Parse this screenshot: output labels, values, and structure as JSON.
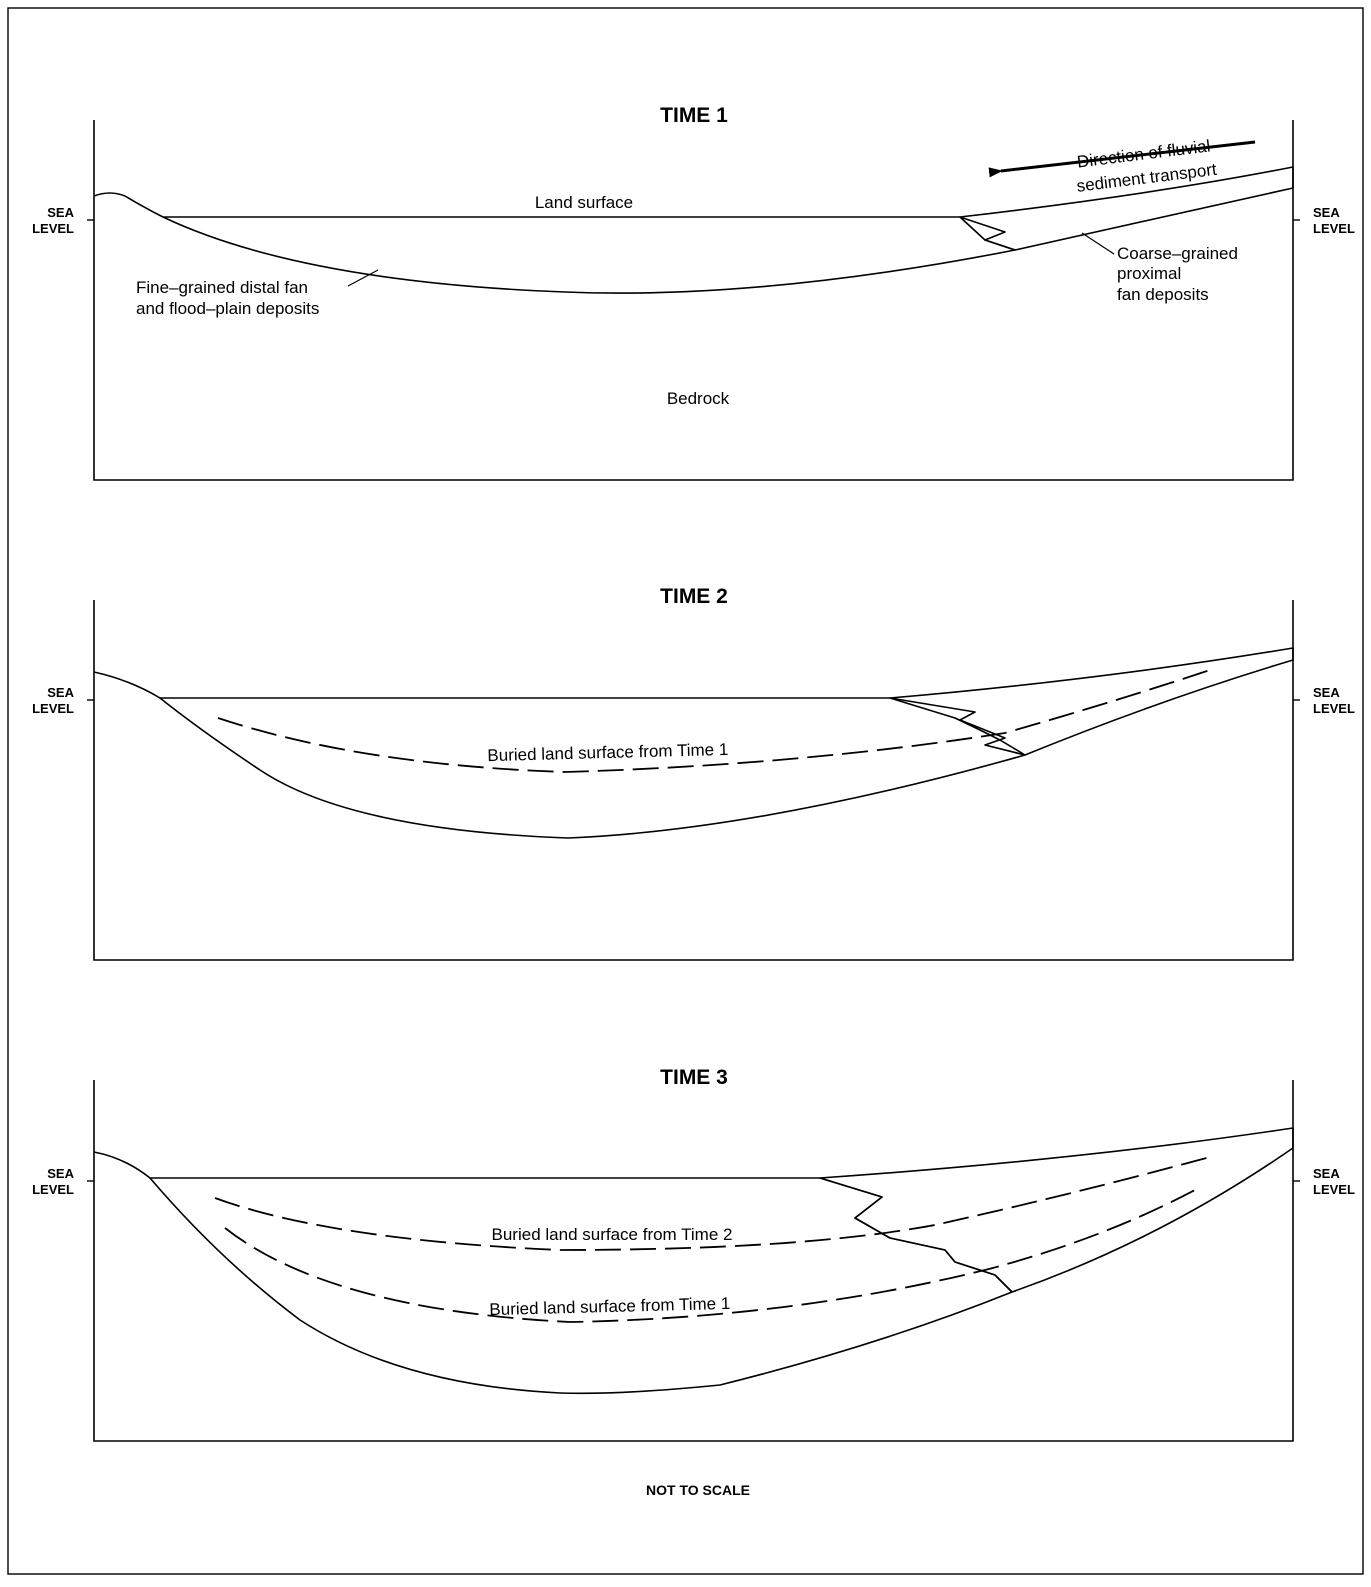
{
  "panels": [
    {
      "title": "TIME 1",
      "sea_level_left": [
        "SEA",
        "LEVEL"
      ],
      "sea_level_right": [
        "SEA",
        "LEVEL"
      ],
      "labels": {
        "land_surface": "Land surface",
        "fine_deposits": [
          "Fine–grained distal fan",
          "and flood–plain deposits"
        ],
        "coarse_deposits": [
          "Coarse–grained",
          "proximal",
          "fan deposits"
        ],
        "transport": [
          "Direction of fluvial",
          "sediment transport"
        ],
        "bedrock": "Bedrock"
      }
    },
    {
      "title": "TIME 2",
      "sea_level_left": [
        "SEA",
        "LEVEL"
      ],
      "sea_level_right": [
        "SEA",
        "LEVEL"
      ],
      "labels": {
        "buried_time1": "Buried land surface from Time 1"
      }
    },
    {
      "title": "TIME 3",
      "sea_level_left": [
        "SEA",
        "LEVEL"
      ],
      "sea_level_right": [
        "SEA",
        "LEVEL"
      ],
      "labels": {
        "buried_time2": "Buried land surface from Time 2",
        "buried_time1": "Buried land surface from Time 1"
      }
    }
  ],
  "footer": "NOT TO SCALE",
  "patterns": {
    "fine": "stipple-dots",
    "coarse": "gravel-circles"
  }
}
